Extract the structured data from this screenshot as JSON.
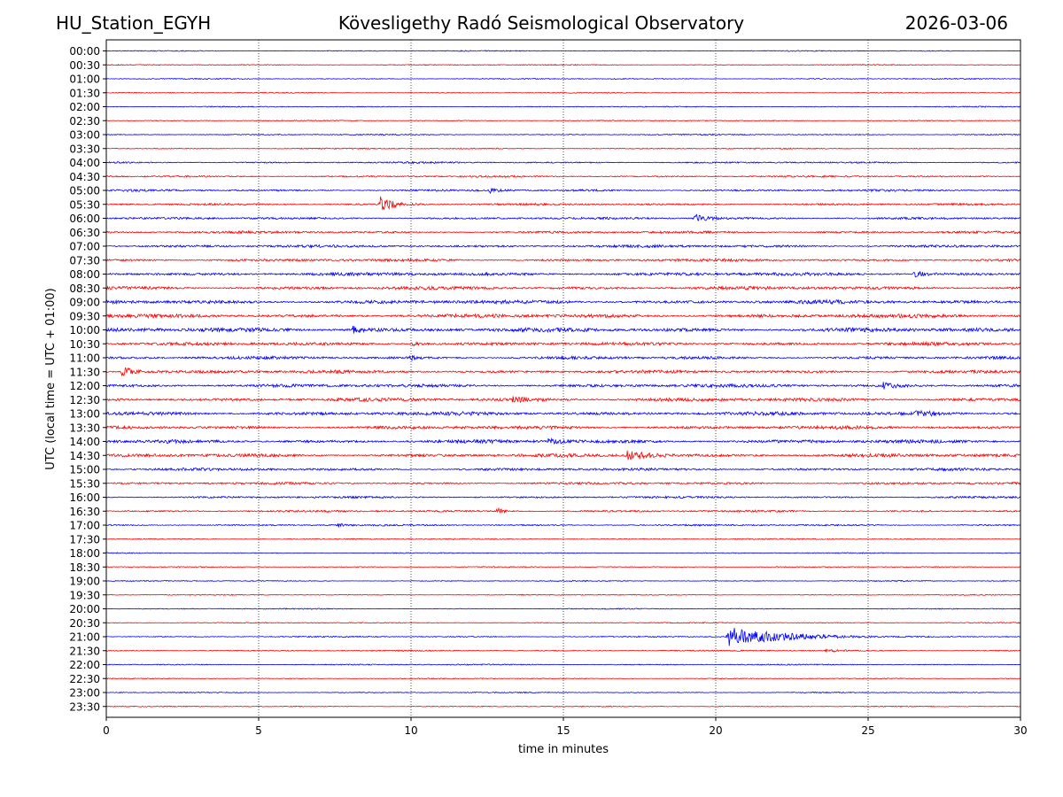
{
  "header": {
    "station": "HU_Station_EGYH",
    "observatory": "Kövesligethy Radó Seismological Observatory",
    "date": "2026-03-06"
  },
  "colors": {
    "trace_a": "#0000ff",
    "trace_b": "#ff0000",
    "grid": "#000000",
    "axis": "#000000"
  },
  "chart_data": {
    "type": "line",
    "title": "Kövesligethy Radó Seismological Observatory",
    "xlabel": "time in minutes",
    "ylabel": "UTC (local time = UTC + 01:00)",
    "xlim": [
      0,
      30
    ],
    "xticks": [
      0,
      5,
      10,
      15,
      20,
      25,
      30
    ],
    "vertical_grid": [
      5,
      10,
      15,
      20,
      25
    ],
    "row_labels": [
      "00:00",
      "00:30",
      "01:00",
      "01:30",
      "02:00",
      "02:30",
      "03:00",
      "03:30",
      "04:00",
      "04:30",
      "05:00",
      "05:30",
      "06:00",
      "06:30",
      "07:00",
      "07:30",
      "08:00",
      "08:30",
      "09:00",
      "09:30",
      "10:00",
      "10:30",
      "11:00",
      "11:30",
      "12:00",
      "12:30",
      "13:00",
      "13:30",
      "14:00",
      "14:30",
      "15:00",
      "15:30",
      "16:00",
      "16:30",
      "17:00",
      "17:30",
      "18:00",
      "18:30",
      "19:00",
      "19:30",
      "20:00",
      "20:30",
      "21:00",
      "21:30",
      "22:00",
      "22:30",
      "23:00",
      "23:30"
    ],
    "row_colors_cycle": [
      "blue",
      "red"
    ],
    "noise_level": [
      0.5,
      0.5,
      0.5,
      0.5,
      0.5,
      0.5,
      0.6,
      0.6,
      0.8,
      0.9,
      1.0,
      1.0,
      1.1,
      1.2,
      1.3,
      1.3,
      1.6,
      1.6,
      1.8,
      1.8,
      2.0,
      1.6,
      1.4,
      1.5,
      1.6,
      1.7,
      1.8,
      1.6,
      1.7,
      1.6,
      1.3,
      1.1,
      1.0,
      1.0,
      0.8,
      0.6,
      0.5,
      0.5,
      0.5,
      0.5,
      0.5,
      0.5,
      0.6,
      0.6,
      0.6,
      0.5,
      0.5,
      0.5
    ],
    "events": [
      {
        "row": 11,
        "t": 9.0,
        "amp": 9,
        "dur": 0.9
      },
      {
        "row": 12,
        "t": 19.3,
        "amp": 4,
        "dur": 1.2
      },
      {
        "row": 10,
        "t": 12.6,
        "amp": 3,
        "dur": 0.5
      },
      {
        "row": 23,
        "t": 0.5,
        "amp": 7,
        "dur": 0.8
      },
      {
        "row": 20,
        "t": 8.1,
        "amp": 4,
        "dur": 0.7
      },
      {
        "row": 21,
        "t": 10.0,
        "amp": 3,
        "dur": 0.6
      },
      {
        "row": 22,
        "t": 10.0,
        "amp": 3,
        "dur": 0.4
      },
      {
        "row": 25,
        "t": 13.3,
        "amp": 3,
        "dur": 1.2
      },
      {
        "row": 26,
        "t": 26.5,
        "amp": 4,
        "dur": 1.3
      },
      {
        "row": 29,
        "t": 17.1,
        "amp": 6,
        "dur": 1.6
      },
      {
        "row": 33,
        "t": 12.8,
        "amp": 4,
        "dur": 0.5
      },
      {
        "row": 34,
        "t": 7.6,
        "amp": 3,
        "dur": 0.3
      },
      {
        "row": 42,
        "t": 20.4,
        "amp": 11,
        "dur": 3.8
      },
      {
        "row": 43,
        "t": 23.6,
        "amp": 2,
        "dur": 0.8
      },
      {
        "row": 16,
        "t": 26.5,
        "amp": 3,
        "dur": 0.8
      },
      {
        "row": 24,
        "t": 25.5,
        "amp": 3,
        "dur": 1.0
      },
      {
        "row": 28,
        "t": 14.5,
        "amp": 2.5,
        "dur": 1.5
      }
    ]
  }
}
